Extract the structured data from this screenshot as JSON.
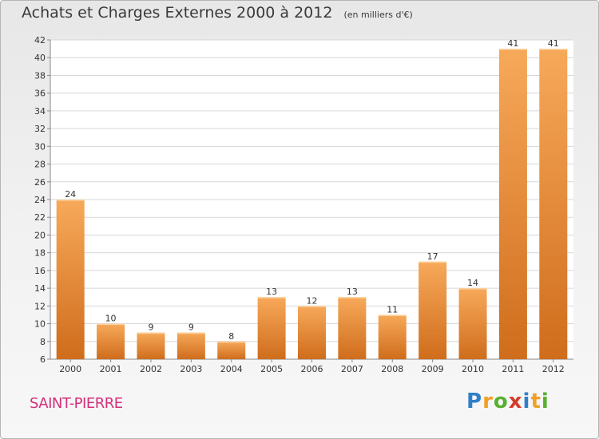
{
  "header": {
    "title": "Achats et Charges Externes 2000 à 2012",
    "unit": "(en milliers d'€)"
  },
  "footer": {
    "commune": "SAINT-PIERRE"
  },
  "logo": {
    "text": "Proxiti",
    "letters": [
      {
        "ch": "P",
        "color": "#2f7fc8"
      },
      {
        "ch": "r",
        "color": "#f0a028"
      },
      {
        "ch": "o",
        "color": "#58b030"
      },
      {
        "ch": "x",
        "color": "#d63c2a"
      },
      {
        "ch": "i",
        "color": "#2f7fc8"
      },
      {
        "ch": "t",
        "color": "#f0a028"
      },
      {
        "ch": "i",
        "color": "#58b030"
      }
    ]
  },
  "colors": {
    "bar_top": "#f7a95a",
    "bar_bottom": "#cf6d1c",
    "grid": "#d7d7d7",
    "axis_text": "#333333"
  },
  "chart_data": {
    "type": "bar",
    "title": "Achats et Charges Externes 2000 à 2012",
    "subtitle": "(en milliers d'€)",
    "categories": [
      "2000",
      "2001",
      "2002",
      "2003",
      "2004",
      "2005",
      "2006",
      "2007",
      "2008",
      "2009",
      "2010",
      "2011",
      "2012"
    ],
    "values": [
      24,
      10,
      9,
      9,
      8,
      13,
      12,
      13,
      11,
      17,
      14,
      41,
      41
    ],
    "ylim": [
      6,
      42
    ],
    "yticks": [
      6,
      8,
      10,
      12,
      14,
      16,
      18,
      20,
      22,
      24,
      26,
      28,
      30,
      32,
      34,
      36,
      38,
      40,
      42
    ],
    "grid": true,
    "xlabel": "",
    "ylabel": ""
  }
}
